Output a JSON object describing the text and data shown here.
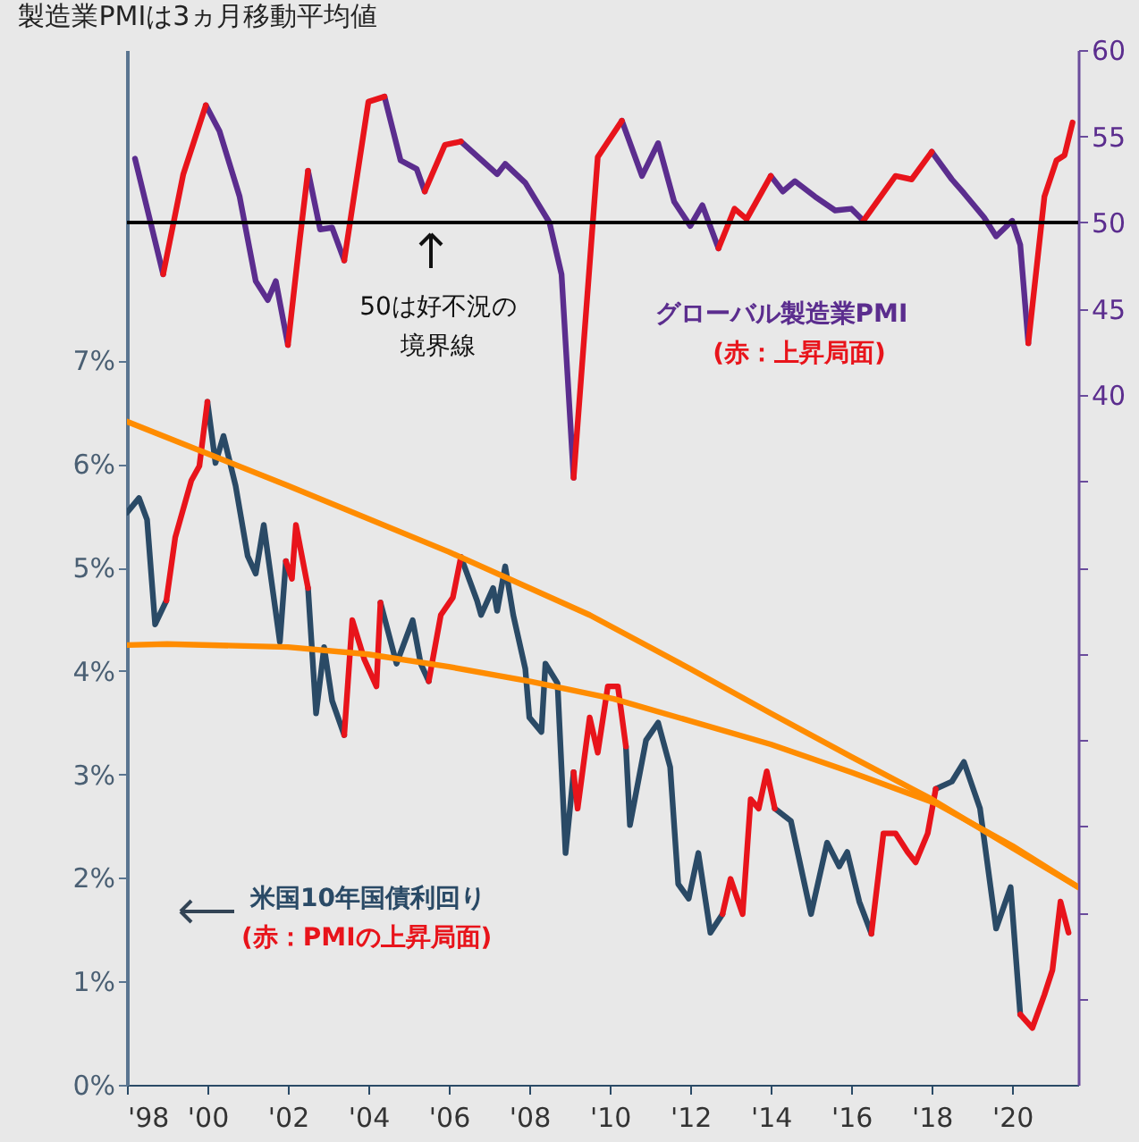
{
  "chart_data": {
    "type": "line",
    "title": "製造業PMIは3ヵ月移動平均値",
    "xlim": [
      1998,
      2021.64
    ],
    "xticks": [
      {
        "value": 1998,
        "label": "'98"
      },
      {
        "value": 2000,
        "label": "'00"
      },
      {
        "value": 2002,
        "label": "'02"
      },
      {
        "value": 2004,
        "label": "'04"
      },
      {
        "value": 2006,
        "label": "'06"
      },
      {
        "value": 2008,
        "label": "'08"
      },
      {
        "value": 2010,
        "label": "'10"
      },
      {
        "value": 2012,
        "label": "'12"
      },
      {
        "value": 2014,
        "label": "'14"
      },
      {
        "value": 2016,
        "label": "'16"
      },
      {
        "value": 2018,
        "label": "'18"
      },
      {
        "value": 2020,
        "label": "'20"
      }
    ],
    "ylim": [
      0,
      10
    ],
    "yticks": [
      {
        "value": 0,
        "label": "0%"
      },
      {
        "value": 1,
        "label": "1%"
      },
      {
        "value": 2,
        "label": "2%"
      },
      {
        "value": 3,
        "label": "3%"
      },
      {
        "value": 4,
        "label": "4%"
      },
      {
        "value": 5,
        "label": "5%"
      },
      {
        "value": 6,
        "label": "6%"
      },
      {
        "value": 7,
        "label": "7%"
      }
    ],
    "y2lim": [
      0,
      60
    ],
    "y2ticks": [
      {
        "value": 5,
        "label": null
      },
      {
        "value": 10,
        "label": null
      },
      {
        "value": 15,
        "label": null
      },
      {
        "value": 20,
        "label": null
      },
      {
        "value": 25,
        "label": null
      },
      {
        "value": 30,
        "label": null
      },
      {
        "value": 35,
        "label": null
      },
      40,
      45,
      50,
      55,
      60
    ],
    "legend": "bottom left",
    "ref_lines": [
      {
        "axis": "y2",
        "value": 50,
        "label": "50は好不況の境界線",
        "color": "#000000"
      }
    ],
    "annotations": [
      "(赤：上昇局面)",
      "(赤：PMIの上昇局面)"
    ],
    "series": [
      {
        "name": "グローバル製造業PMI",
        "axis": "y2",
        "color": "#5b2d8e",
        "x": [
          1998.2,
          1998.9,
          1999.4,
          1999.96,
          2000.3,
          2000.8,
          2001.2,
          2001.5,
          2001.7,
          2002.0,
          2002.3,
          2002.5,
          2002.8,
          2003.1,
          2003.4,
          2004.0,
          2004.4,
          2004.8,
          2005.2,
          2005.4,
          2005.9,
          2006.3,
          2007.2,
          2007.4,
          2007.9,
          2008.5,
          2008.8,
          2009.1,
          2009.7,
          2010.3,
          2010.8,
          2011.2,
          2011.6,
          2012.0,
          2012.3,
          2012.7,
          2013.1,
          2013.4,
          2014.0,
          2014.3,
          2014.6,
          2015.1,
          2015.6,
          2016.0,
          2016.3,
          2017.1,
          2017.5,
          2018.0,
          2018.5,
          2018.8,
          2019.3,
          2019.6,
          2020.0,
          2020.2,
          2020.4
        ],
        "values": [
          53.7,
          47.0,
          null,
          56.8,
          55.3,
          51.5,
          46.6,
          45.5,
          46.6,
          42.9,
          null,
          53.0,
          49.6,
          49.7,
          47.8,
          null,
          57.3,
          53.6,
          53.1,
          51.8,
          null,
          54.7,
          52.8,
          53.4,
          52.3,
          50.0,
          47.0,
          35.2,
          null,
          55.9,
          52.7,
          54.6,
          51.2,
          49.8,
          51.0,
          48.5,
          null,
          null,
          52.7,
          51.8,
          52.4,
          51.5,
          50.7,
          50.8,
          50.1,
          null,
          null,
          54.1,
          52.5,
          51.7,
          50.3,
          49.2,
          50.1,
          48.7,
          43.0
        ]
      },
      {
        "axis": "y2",
        "color": "#e8141b",
        "x": [
          1998.9,
          1999.4,
          1999.96,
          2000.3,
          2000.8,
          2001.2,
          2001.5,
          2001.7,
          2002.0,
          2002.3,
          2002.5,
          2002.8,
          2003.1,
          2003.4,
          2004.0,
          2004.4,
          2004.8,
          2005.2,
          2005.4,
          2005.9,
          2006.3,
          2007.2,
          2007.4,
          2007.9,
          2008.5,
          2008.8,
          2009.1,
          2009.7,
          2010.3,
          2010.8,
          2011.2,
          2011.6,
          2012.0,
          2012.3,
          2012.7,
          2013.1,
          2013.4,
          2014.0,
          2014.3,
          2014.6,
          2015.1,
          2015.6,
          2016.0,
          2016.3,
          2017.1,
          2017.5,
          2018.0,
          2018.5,
          2018.8,
          2019.3,
          2019.6,
          2020.0,
          2020.2,
          2020.4,
          2020.8,
          2021.1,
          2021.3,
          2021.5
        ],
        "values": [
          47.0,
          52.8,
          56.8,
          null,
          null,
          null,
          null,
          null,
          42.9,
          49.1,
          53.0,
          null,
          null,
          47.8,
          57.0,
          57.3,
          null,
          null,
          51.8,
          54.5,
          54.7,
          null,
          null,
          null,
          null,
          null,
          35.2,
          53.8,
          55.9,
          null,
          null,
          null,
          null,
          null,
          48.5,
          50.8,
          50.2,
          52.7,
          null,
          null,
          null,
          null,
          null,
          50.1,
          52.7,
          52.5,
          54.1,
          null,
          null,
          null,
          null,
          null,
          null,
          43.0,
          51.5,
          53.6,
          53.9,
          55.8
        ]
      },
      {
        "name": "米国10年国債利回り",
        "color": "#2a4a66",
        "x": [
          1998.0,
          1998.3,
          1998.5,
          1998.7,
          1998.98,
          1999.2,
          1999.6,
          1999.8,
          2000.0,
          2000.2,
          2000.4,
          2000.7,
          2001.0,
          2001.2,
          2001.4,
          2001.8,
          2001.95,
          2002.1,
          2002.2,
          2002.5,
          2002.7,
          2002.9,
          2003.1,
          2003.4,
          2003.6,
          2003.9,
          2004.2,
          2004.3,
          2004.7,
          2005.1,
          2005.3,
          2005.5,
          2005.8,
          2006.1,
          2006.3,
          2006.7,
          2006.8,
          2007.1,
          2007.2,
          2007.4,
          2007.6,
          2007.9,
          2008.0,
          2008.3,
          2008.4,
          2008.7,
          2008.9,
          2009.1,
          2009.2,
          2009.5,
          2009.7,
          2009.95,
          2010.2,
          2010.4,
          2010.5,
          2010.9,
          2011.2,
          2011.5,
          2011.7,
          2011.96,
          2012.2,
          2012.5,
          2012.8,
          2013.0,
          2013.3,
          2013.5,
          2013.7,
          2013.9,
          2014.1,
          2014.5,
          2015.0,
          2015.4,
          2015.7,
          2015.9,
          2016.2,
          2016.5,
          2016.8,
          2017.1,
          2017.4,
          2017.6,
          2017.9,
          2018.1,
          2018.5,
          2018.8,
          2019.2,
          2019.6,
          2019.96,
          2020.2
        ],
        "values": [
          5.53,
          5.67,
          5.46,
          4.45,
          4.68,
          null,
          null,
          null,
          6.6,
          6.01,
          6.27,
          5.79,
          5.11,
          4.94,
          5.41,
          4.28,
          5.06,
          null,
          null,
          4.8,
          3.59,
          4.23,
          3.71,
          3.38,
          null,
          null,
          null,
          4.66,
          4.07,
          4.49,
          4.07,
          3.9,
          null,
          null,
          5.1,
          4.68,
          4.54,
          4.8,
          4.58,
          5.01,
          4.54,
          4.02,
          3.55,
          3.41,
          4.07,
          3.88,
          2.24,
          3.02,
          null,
          null,
          null,
          null,
          null,
          3.27,
          2.51,
          3.33,
          3.5,
          3.07,
          1.94,
          1.8,
          2.24,
          1.47,
          1.65,
          null,
          null,
          null,
          null,
          null,
          2.67,
          2.55,
          1.65,
          2.34,
          2.11,
          2.25,
          1.77,
          1.46,
          null,
          null,
          null,
          null,
          null,
          2.86,
          2.93,
          3.12,
          2.67,
          1.51,
          1.91,
          0.68
        ]
      },
      {
        "color": "#e8141b",
        "x": [
          1998.98,
          1999.2,
          1999.6,
          1999.8,
          2000.0,
          2000.2,
          2000.4,
          2000.7,
          2001.0,
          2001.2,
          2001.4,
          2001.8,
          2001.95,
          2002.1,
          2002.2,
          2002.5,
          2002.7,
          2002.9,
          2003.1,
          2003.4,
          2003.6,
          2003.9,
          2004.2,
          2004.3,
          2004.7,
          2005.1,
          2005.3,
          2005.5,
          2005.8,
          2006.1,
          2006.3,
          2006.7,
          2006.8,
          2007.1,
          2007.2,
          2007.4,
          2007.6,
          2007.9,
          2008.0,
          2008.3,
          2008.4,
          2008.7,
          2008.9,
          2009.1,
          2009.2,
          2009.5,
          2009.7,
          2009.95,
          2010.2,
          2010.4,
          2010.5,
          2010.9,
          2011.2,
          2011.5,
          2011.7,
          2011.96,
          2012.2,
          2012.5,
          2012.8,
          2013.0,
          2013.3,
          2013.5,
          2013.7,
          2013.9,
          2014.1,
          2014.5,
          2015.0,
          2015.4,
          2015.7,
          2015.9,
          2016.2,
          2016.5,
          2016.8,
          2017.1,
          2017.4,
          2017.6,
          2017.9,
          2018.1,
          2018.5,
          2018.8,
          2019.2,
          2019.6,
          2019.96,
          2020.2,
          2020.5,
          2020.8,
          2021.0,
          2021.2,
          2021.4
        ],
        "values": [
          4.68,
          5.29,
          5.84,
          5.98,
          6.6,
          null,
          null,
          null,
          null,
          null,
          null,
          null,
          5.06,
          4.89,
          5.41,
          4.8,
          null,
          null,
          null,
          3.38,
          4.49,
          4.11,
          3.85,
          4.66,
          null,
          null,
          null,
          3.9,
          4.54,
          4.71,
          5.1,
          null,
          null,
          null,
          null,
          null,
          null,
          null,
          null,
          null,
          null,
          null,
          null,
          3.02,
          2.67,
          3.55,
          3.21,
          3.85,
          3.85,
          3.27,
          null,
          null,
          null,
          null,
          null,
          null,
          null,
          null,
          1.65,
          1.99,
          1.65,
          2.76,
          2.67,
          3.03,
          2.67,
          null,
          null,
          null,
          null,
          null,
          null,
          1.46,
          2.43,
          2.43,
          2.25,
          2.15,
          2.43,
          2.86,
          null,
          null,
          null,
          null,
          null,
          0.68,
          0.55,
          0.87,
          1.11,
          1.77,
          1.47
        ]
      },
      {
        "color": "#ff8c00",
        "x": [
          1998,
          2002,
          2006,
          2009.5,
          2012,
          2014,
          2016,
          2018,
          2020,
          2021.64
        ],
        "values": [
          6.41,
          5.79,
          5.15,
          4.54,
          4.02,
          3.59,
          3.17,
          2.76,
          2.29,
          1.91
        ]
      },
      {
        "color": "#ff8c00",
        "x": [
          1998,
          1999,
          2002,
          2004,
          2006,
          2008,
          2010.1,
          2014,
          2016,
          2018.1,
          2020,
          2021.64
        ],
        "values": [
          4.25,
          4.26,
          4.23,
          4.16,
          4.04,
          3.9,
          3.73,
          3.29,
          3.02,
          2.72,
          2.31,
          1.91
        ]
      }
    ]
  }
}
